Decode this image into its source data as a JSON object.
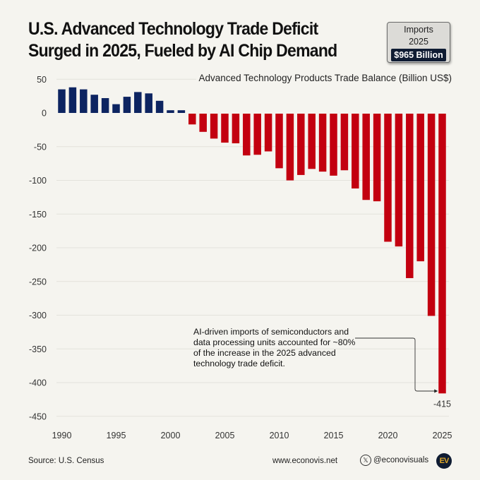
{
  "header": {
    "title_line1": "U.S. Advanced Technology Trade Deficit",
    "title_line2": "Surged in 2025, Fueled by AI Chip Demand"
  },
  "badge": {
    "label_line1": "Imports",
    "label_line2": "2025",
    "value": "$965 Billion"
  },
  "annotation": {
    "lines": [
      "AI-driven imports of semiconductors and",
      "data processing units accounted for ~80%",
      "of the increase in the 2025 advanced",
      "technology trade deficit."
    ]
  },
  "footer": {
    "source": "Source: U.S. Census",
    "website": "www.econovis.net",
    "social_handle": "@econovisuals",
    "social_icon": "x-logo-icon",
    "logo_text": "EV"
  },
  "colors": {
    "surplus": "#0d2461",
    "deficit": "#c30010",
    "grid": "#e3e2dc",
    "background": "#f5f4ef"
  },
  "chart_data": {
    "type": "bar",
    "title": "U.S. Advanced Technology Trade Deficit Surged in 2025, Fueled by AI Chip Demand",
    "subtitle": "Advanced Technology Products Trade Balance (Billion US$)",
    "xlabel": "",
    "ylabel": "Advanced Technology Products Trade Balance (Billion US$)",
    "ylim": [
      -450,
      50
    ],
    "yticks": [
      50,
      0,
      -50,
      -100,
      -150,
      -200,
      -250,
      -300,
      -350,
      -400,
      -450
    ],
    "xticks": [
      1990,
      1995,
      2000,
      2005,
      2010,
      2015,
      2020,
      2025
    ],
    "grid": true,
    "categories": [
      1990,
      1991,
      1992,
      1993,
      1994,
      1995,
      1996,
      1997,
      1998,
      1999,
      2000,
      2001,
      2002,
      2003,
      2004,
      2005,
      2006,
      2007,
      2008,
      2009,
      2010,
      2011,
      2012,
      2013,
      2014,
      2015,
      2016,
      2017,
      2018,
      2019,
      2020,
      2021,
      2022,
      2023,
      2024,
      2025
    ],
    "values": [
      35,
      38,
      35,
      27,
      22,
      13,
      24,
      31,
      29,
      18,
      4,
      4,
      -16,
      -27,
      -37,
      -43,
      -44,
      -62,
      -61,
      -56,
      -81,
      -99,
      -91,
      -82,
      -86,
      -92,
      -84,
      -111,
      -128,
      -130,
      -190,
      -197,
      -244,
      -219,
      -300,
      -415
    ],
    "data_labels": [
      {
        "category": 2025,
        "text": "-415"
      }
    ],
    "annotations": [
      "AI-driven imports of semiconductors and data processing units accounted for ~80% of the increase in the 2025 advanced technology trade deficit."
    ]
  }
}
